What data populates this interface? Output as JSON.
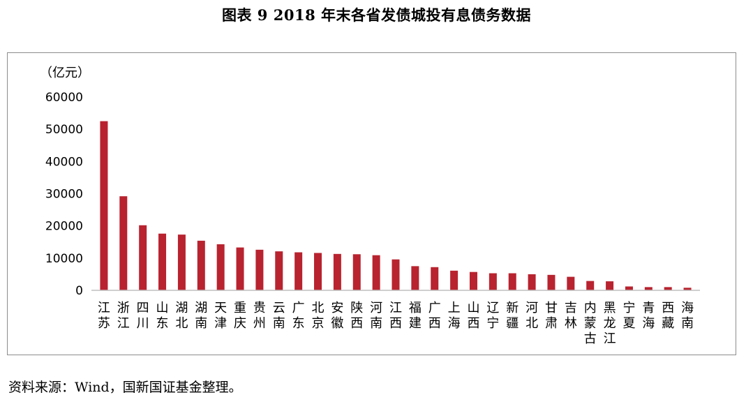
{
  "page": {
    "title": "图表 9  2018 年末各省发债城投有息债务数据",
    "source": "资料来源：Wind，国新国证基金整理。"
  },
  "chart_data": {
    "type": "bar",
    "title": "图表 9  2018 年末各省发债城投有息债务数据",
    "ylabel": "（亿元）",
    "xlabel": "",
    "ylim": [
      0,
      60000
    ],
    "yticks": [
      0,
      10000,
      20000,
      30000,
      40000,
      50000,
      60000
    ],
    "grid": false,
    "legend": "none",
    "bar_color": "#b8232f",
    "categories": [
      "江苏",
      "浙江",
      "四川",
      "山东",
      "湖北",
      "湖南",
      "天津",
      "重庆",
      "贵州",
      "云南",
      "广东",
      "北京",
      "安徽",
      "陕西",
      "河南",
      "江西",
      "福建",
      "广西",
      "上海",
      "山西",
      "辽宁",
      "新疆",
      "河北",
      "甘肃",
      "吉林",
      "内蒙古",
      "黑龙江",
      "宁夏",
      "青海",
      "西藏",
      "海南"
    ],
    "values": [
      52500,
      29200,
      20200,
      17600,
      17300,
      15400,
      14300,
      13300,
      12600,
      12100,
      11800,
      11600,
      11300,
      11200,
      10900,
      9600,
      7500,
      7200,
      6100,
      5700,
      5300,
      5300,
      5000,
      4800,
      4200,
      2900,
      2800,
      1200,
      1000,
      1000,
      800
    ]
  }
}
